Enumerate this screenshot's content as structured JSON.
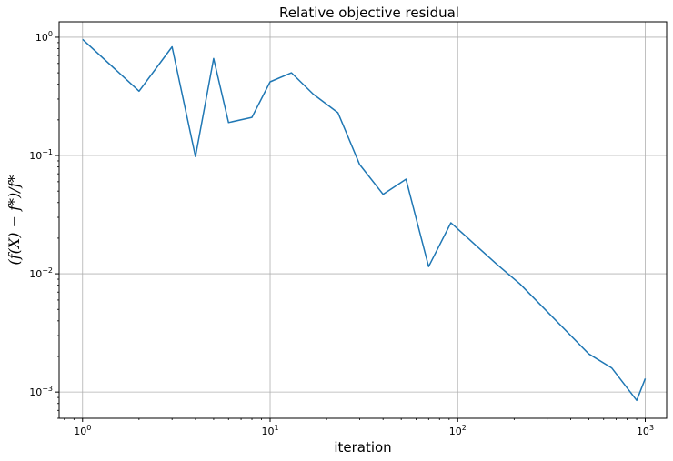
{
  "chart_data": {
    "type": "line",
    "title": "Relative objective residual",
    "xlabel": "iteration",
    "ylabel": "(f(X) − f*)/f*",
    "xscale": "log",
    "yscale": "log",
    "xlim": [
      0.75,
      1300
    ],
    "ylim": [
      0.0006,
      1.35
    ],
    "grid": true,
    "colors": {
      "line": "#1f77b4",
      "grid": "#b0b0b0"
    },
    "x_ticks": [
      {
        "value": 1,
        "base": "10",
        "exp": "0"
      },
      {
        "value": 10,
        "base": "10",
        "exp": "1"
      },
      {
        "value": 100,
        "base": "10",
        "exp": "2"
      },
      {
        "value": 1000,
        "base": "10",
        "exp": "3"
      }
    ],
    "y_ticks": [
      {
        "value": 1,
        "base": "10",
        "exp": "0"
      },
      {
        "value": 0.1,
        "base": "10",
        "exp": "−1"
      },
      {
        "value": 0.01,
        "base": "10",
        "exp": "−2"
      },
      {
        "value": 0.001,
        "base": "10",
        "exp": "−3"
      }
    ],
    "series": [
      {
        "x": [
          1,
          2,
          3,
          4,
          5,
          6,
          8,
          10,
          13,
          17,
          23,
          30,
          40,
          53,
          70,
          92,
          122,
          162,
          215,
          500,
          662,
          900,
          1000
        ],
        "y": [
          0.96,
          0.35,
          0.83,
          0.098,
          0.66,
          0.19,
          0.21,
          0.42,
          0.5,
          0.33,
          0.23,
          0.084,
          0.047,
          0.063,
          0.0115,
          0.027,
          0.018,
          0.012,
          0.0082,
          0.0021,
          0.0016,
          0.00085,
          0.0013
        ]
      }
    ]
  }
}
